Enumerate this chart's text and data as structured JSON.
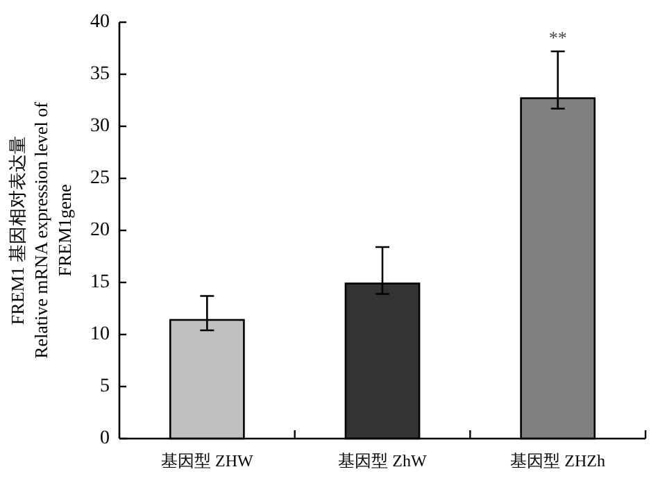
{
  "chart_data": {
    "type": "bar",
    "ylabel": "FREM1 基因相对表达量\nRelative mRNA expression level of\nFREM1gene",
    "categories": [
      "基因型 ZHW",
      "基因型 ZhW",
      "基因型 ZHZh"
    ],
    "values": [
      11.4,
      14.9,
      32.7
    ],
    "colors": [
      "#c0c0c0",
      "#333333",
      "#808080"
    ],
    "errors": [
      [
        10.4,
        13.7
      ],
      [
        13.9,
        18.4
      ],
      [
        31.7,
        37.2
      ]
    ],
    "ylim": [
      0,
      40
    ],
    "yticks": [
      0,
      5,
      10,
      15,
      20,
      25,
      30,
      35,
      40
    ],
    "annotations": [
      "**"
    ],
    "grid": false
  }
}
